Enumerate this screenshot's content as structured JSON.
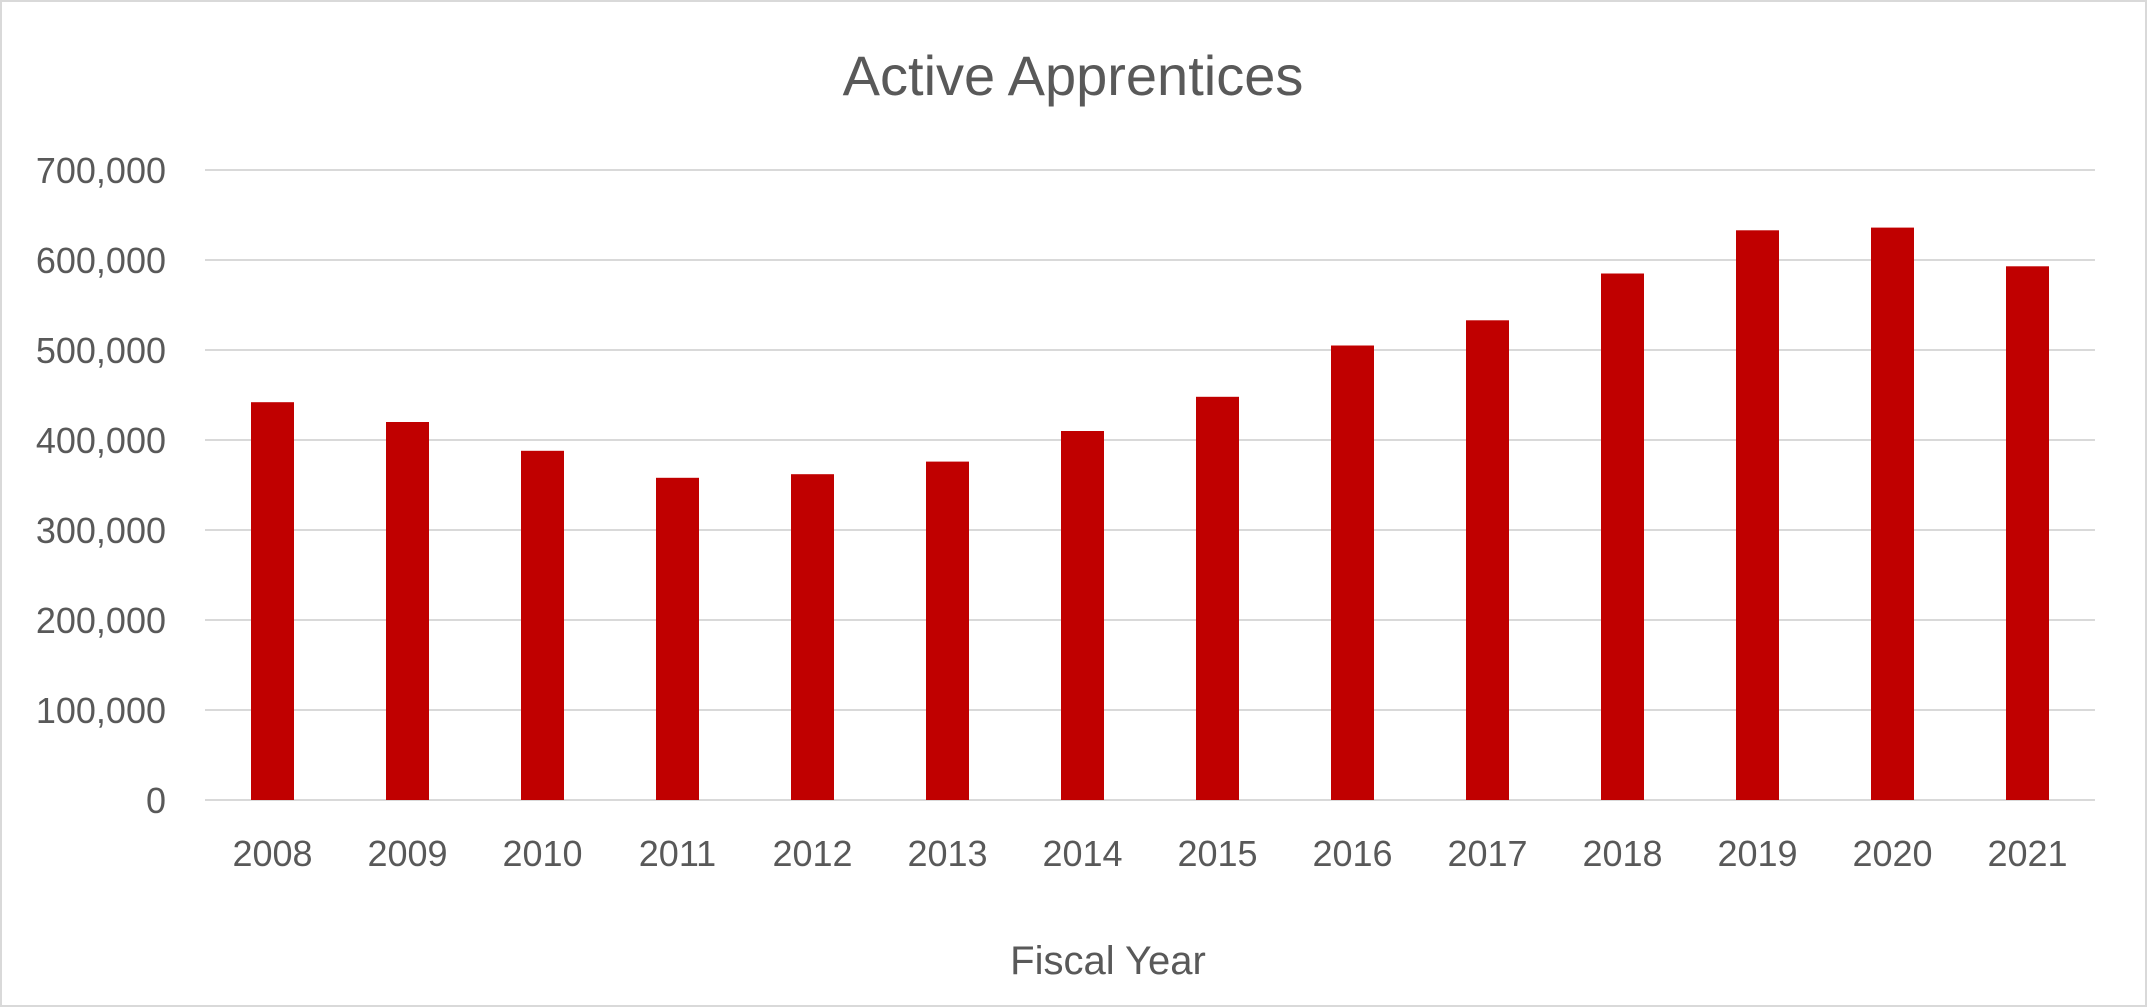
{
  "chart_data": {
    "type": "bar",
    "title": "Active Apprentices",
    "xlabel": "Fiscal Year",
    "ylabel": "",
    "categories": [
      "2008",
      "2009",
      "2010",
      "2011",
      "2012",
      "2013",
      "2014",
      "2015",
      "2016",
      "2017",
      "2018",
      "2019",
      "2020",
      "2021"
    ],
    "values": [
      442000,
      420000,
      388000,
      358000,
      362000,
      376000,
      410000,
      448000,
      505000,
      533000,
      585000,
      633000,
      636000,
      593000
    ],
    "ylim": [
      0,
      700000
    ],
    "yticks": [
      {
        "value": 0,
        "label": "0"
      },
      {
        "value": 100000,
        "label": "100,000"
      },
      {
        "value": 200000,
        "label": "200,000"
      },
      {
        "value": 300000,
        "label": "300,000"
      },
      {
        "value": 400000,
        "label": "400,000"
      },
      {
        "value": 500000,
        "label": "500,000"
      },
      {
        "value": 600000,
        "label": "600,000"
      },
      {
        "value": 700000,
        "label": "700,000"
      }
    ],
    "grid": true,
    "legend": "none",
    "colors": {
      "bar": "#c00000",
      "grid": "#d9d9d9",
      "text": "#595959"
    }
  }
}
